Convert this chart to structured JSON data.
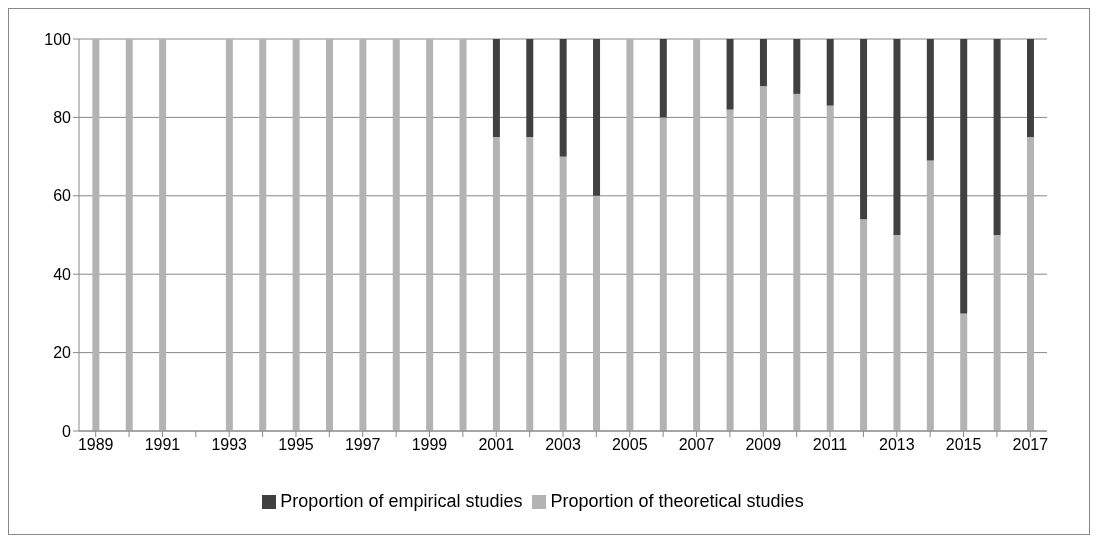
{
  "chart_data": {
    "type": "bar",
    "stacked": true,
    "categories": [
      "1989",
      null,
      "1991",
      null,
      "1993",
      null,
      "1995",
      null,
      "1997",
      null,
      "1999",
      null,
      "2001",
      null,
      "2003",
      null,
      "2005",
      null,
      "2007",
      null,
      "2009",
      null,
      "2011",
      null,
      "2013",
      null,
      "2015",
      null,
      "2017"
    ],
    "series": [
      {
        "name": "Proportion of theoretical studies",
        "color": "#b3b3b3",
        "values": [
          100,
          100,
          100,
          0,
          100,
          100,
          100,
          100,
          100,
          100,
          100,
          100,
          75,
          75,
          70,
          60,
          100,
          80,
          100,
          82,
          88,
          86,
          83,
          54,
          50,
          69,
          30,
          50,
          75
        ]
      },
      {
        "name": "Proportion of empirical studies",
        "color": "#404040",
        "values": [
          0,
          0,
          0,
          0,
          0,
          0,
          0,
          0,
          0,
          0,
          0,
          0,
          25,
          25,
          30,
          40,
          0,
          20,
          0,
          18,
          12,
          14,
          17,
          46,
          50,
          31,
          70,
          50,
          25
        ]
      }
    ],
    "ylim": [
      0,
      100
    ],
    "yticks": [
      0,
      20,
      40,
      60,
      80,
      100
    ],
    "grid": "y",
    "legend": "bottom"
  }
}
